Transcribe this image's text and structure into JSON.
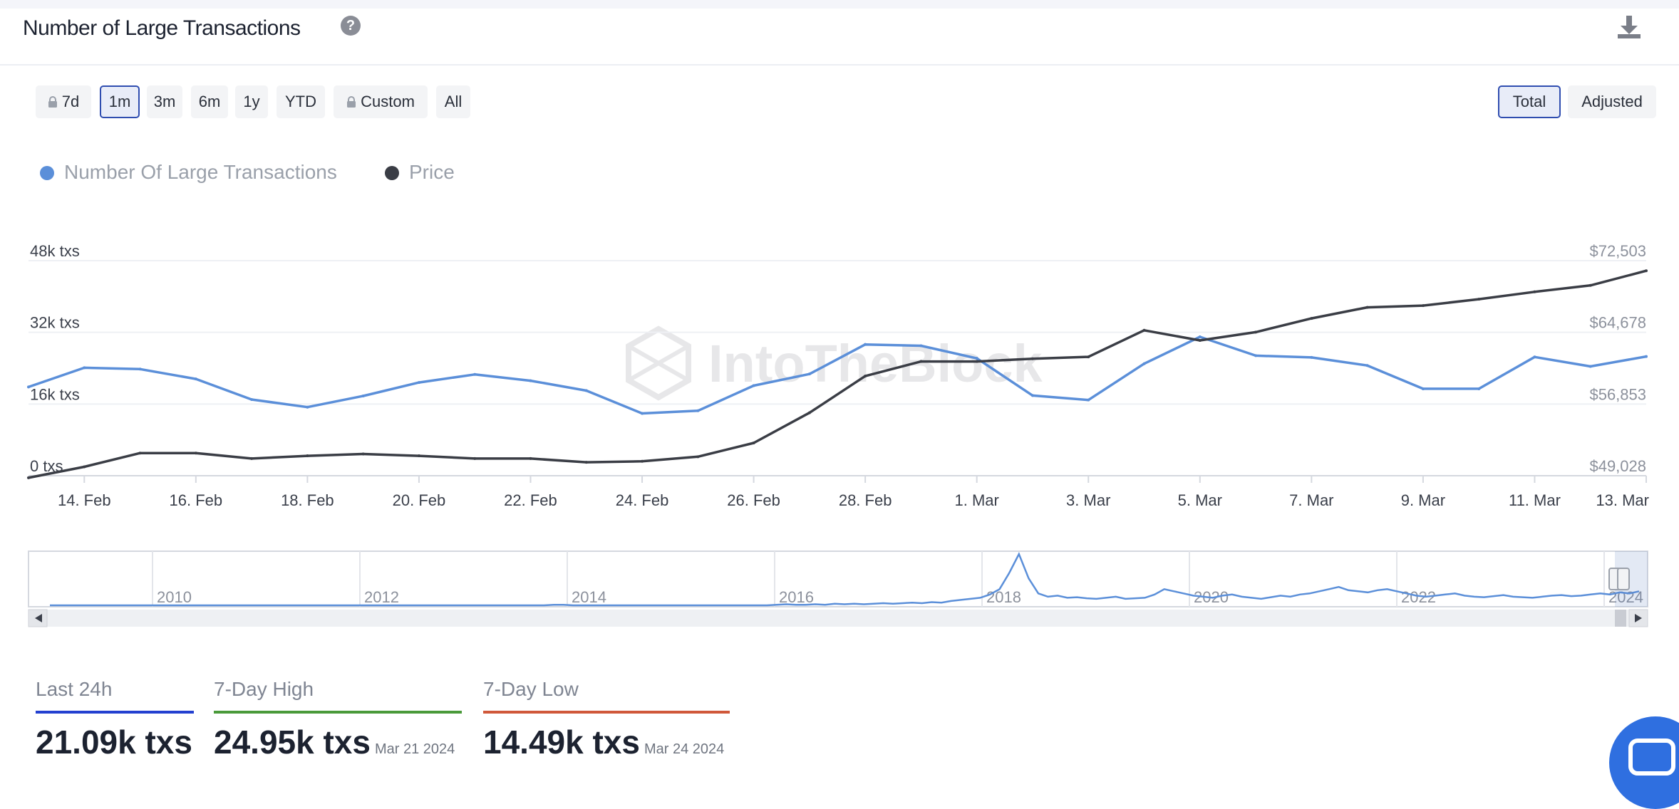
{
  "header": {
    "title": "Number of Large Transactions",
    "help_icon": "?"
  },
  "range_buttons": [
    {
      "label": "7d",
      "locked": true,
      "active": false
    },
    {
      "label": "1m",
      "locked": false,
      "active": true
    },
    {
      "label": "3m",
      "locked": false,
      "active": false
    },
    {
      "label": "6m",
      "locked": false,
      "active": false
    },
    {
      "label": "1y",
      "locked": false,
      "active": false
    },
    {
      "label": "YTD",
      "locked": false,
      "active": false
    },
    {
      "label": "Custom",
      "locked": true,
      "active": false
    },
    {
      "label": "All",
      "locked": false,
      "active": false
    }
  ],
  "mode_buttons": [
    {
      "label": "Total",
      "active": true
    },
    {
      "label": "Adjusted",
      "active": false
    }
  ],
  "legend": [
    {
      "label": "Number Of Large Transactions",
      "color": "#5b8fd9"
    },
    {
      "label": "Price",
      "color": "#3a3d45"
    }
  ],
  "watermark": "IntoTheBlock",
  "chart_data": {
    "type": "line",
    "x": [
      "13. Feb",
      "14. Feb",
      "15. Feb",
      "16. Feb",
      "17. Feb",
      "18. Feb",
      "19. Feb",
      "20. Feb",
      "21. Feb",
      "22. Feb",
      "23. Feb",
      "24. Feb",
      "25. Feb",
      "26. Feb",
      "27. Feb",
      "28. Feb",
      "29. Feb",
      "1. Mar",
      "2. Mar",
      "3. Mar",
      "4. Mar",
      "5. Mar",
      "6. Mar",
      "7. Mar",
      "8. Mar",
      "9. Mar",
      "10. Mar",
      "11. Mar",
      "12. Mar",
      "13. Mar"
    ],
    "x_tick_labels": [
      "14. Feb",
      "16. Feb",
      "18. Feb",
      "20. Feb",
      "22. Feb",
      "24. Feb",
      "26. Feb",
      "28. Feb",
      "1. Mar",
      "3. Mar",
      "5. Mar",
      "7. Mar",
      "9. Mar",
      "11. Mar",
      "13. Mar"
    ],
    "series": [
      {
        "name": "Number Of Large Transactions",
        "axis": "left",
        "color": "#5b8fd9",
        "values": [
          19800,
          24100,
          23800,
          21600,
          17000,
          15300,
          17800,
          20800,
          22600,
          21200,
          19000,
          13900,
          14500,
          20100,
          22700,
          29300,
          29000,
          26200,
          17900,
          16900,
          25000,
          31000,
          26800,
          26400,
          24600,
          19400,
          19400,
          26500,
          24400,
          26600
        ]
      },
      {
        "name": "Price",
        "axis": "right",
        "color": "#3a3d45",
        "values": [
          48800,
          50000,
          51500,
          51500,
          50900,
          51200,
          51400,
          51200,
          50900,
          50900,
          50500,
          50600,
          51100,
          52600,
          55900,
          59900,
          61500,
          61500,
          61800,
          62000,
          64900,
          63800,
          64700,
          66200,
          67400,
          67600,
          68300,
          69100,
          69800,
          71400
        ]
      }
    ],
    "y_left": {
      "ticks": [
        "0 txs",
        "16k txs",
        "32k txs",
        "48k txs"
      ],
      "range": [
        0,
        48000
      ]
    },
    "y_right": {
      "ticks": [
        "$49,028",
        "$56,853",
        "$64,678",
        "$72,503"
      ],
      "range": [
        49028,
        72503
      ]
    },
    "grid": true,
    "navigator": {
      "year_labels": [
        "2010",
        "2012",
        "2014",
        "2016",
        "2018",
        "2020",
        "2022",
        "2024"
      ],
      "values": [
        0,
        0,
        0,
        0,
        0,
        0,
        0,
        0,
        0,
        0,
        0,
        0,
        0,
        0,
        0,
        0,
        0,
        0,
        0,
        0,
        0,
        0,
        0,
        0,
        0,
        0,
        0,
        0,
        0,
        0,
        0,
        0,
        0,
        0,
        0,
        0,
        0,
        0,
        0,
        0,
        0,
        0,
        0,
        0,
        0,
        0,
        0,
        0,
        0,
        0,
        0,
        0,
        1,
        1,
        0,
        0,
        0,
        0,
        0,
        0,
        0,
        0,
        0,
        0,
        0,
        0,
        0,
        0,
        0,
        0,
        0,
        0,
        0,
        0,
        0,
        1,
        2,
        1,
        1,
        2,
        1,
        3,
        2,
        3,
        2,
        3,
        4,
        3,
        4,
        5,
        4,
        6,
        5,
        8,
        10,
        12,
        14,
        20,
        30,
        60,
        95,
        50,
        22,
        16,
        18,
        14,
        15,
        13,
        12,
        14,
        16,
        12,
        13,
        14,
        20,
        30,
        26,
        22,
        18,
        16,
        14,
        18,
        20,
        16,
        14,
        12,
        15,
        18,
        16,
        20,
        22,
        26,
        30,
        34,
        28,
        26,
        24,
        28,
        30,
        26,
        22,
        18,
        16,
        18,
        20,
        22,
        18,
        16,
        15,
        17,
        19,
        16,
        15,
        14,
        16,
        18,
        19,
        17,
        18,
        20,
        22,
        20,
        24,
        22,
        26
      ]
    }
  },
  "stats": [
    {
      "label": "Last 24h",
      "value": "21.09k txs",
      "date": "",
      "color": "#2340d0"
    },
    {
      "label": "7-Day High",
      "value": "24.95k txs",
      "date": "Mar 21 2024",
      "color": "#4a9a3a"
    },
    {
      "label": "7-Day Low",
      "value": "14.49k txs",
      "date": "Mar 24 2024",
      "color": "#d0583a"
    }
  ]
}
